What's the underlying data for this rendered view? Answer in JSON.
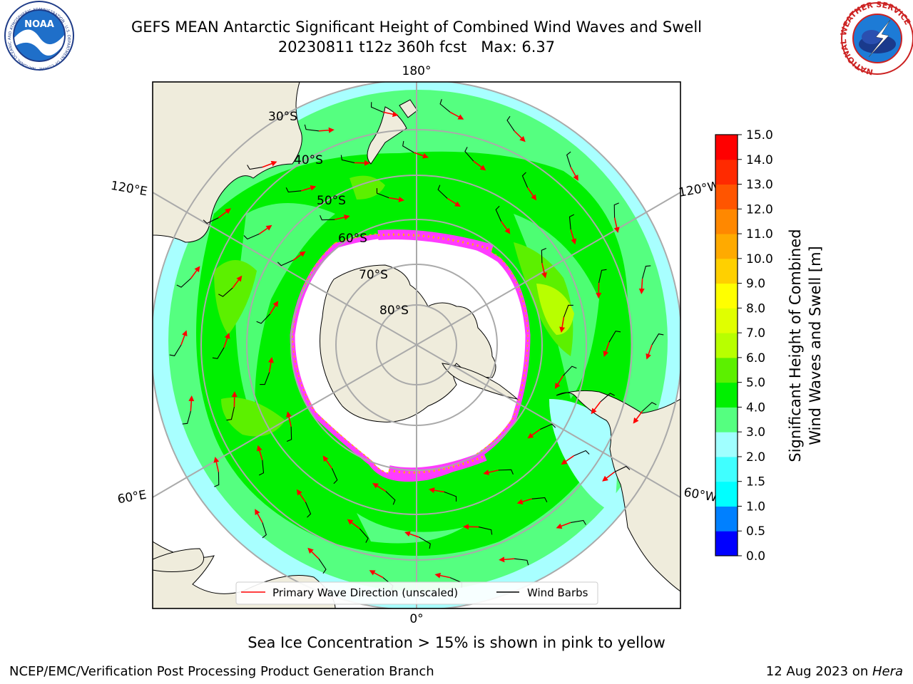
{
  "header": {
    "title_line1": "GEFS MEAN Antarctic Significant Height of Combined Wind Waves and Swell",
    "title_line2": "20230811 t12z 360h fcst   Max: 6.37"
  },
  "logos": {
    "noaa": {
      "text": "NOAA",
      "ring": "NATIONAL OCEANIC AND ATMOSPHERIC ADMINISTRATION · U.S. DEPARTMENT OF COMMERCE"
    },
    "nws": {
      "ring": "NATIONAL WEATHER SERVICE"
    }
  },
  "map": {
    "lon_labels": {
      "top": "180°",
      "bottom": "0°",
      "upper_left": "120°E",
      "upper_right": "120°W",
      "lower_left": "60°E",
      "lower_right": "60°W"
    },
    "lat_labels": [
      "30°S",
      "40°S",
      "50°S",
      "60°S",
      "70°S",
      "80°S"
    ],
    "legend": {
      "wave_direction": "Primary Wave Direction (unscaled)",
      "wind_barbs": "Wind Barbs"
    },
    "colors": {
      "land": "#efecdc",
      "sea_ice": "#ff3cff",
      "arrow": "#ff0000",
      "barb": "#000000"
    }
  },
  "colorbar": {
    "label_line1": "Significant Height of Combined",
    "label_line2": "Wind Waves and Swell [m]",
    "ticks": [
      "0.0",
      "0.5",
      "1.0",
      "1.5",
      "2.0",
      "3.0",
      "4.0",
      "5.0",
      "6.0",
      "7.0",
      "8.0",
      "9.0",
      "10.0",
      "11.0",
      "12.0",
      "13.0",
      "14.0",
      "15.0"
    ],
    "colors": [
      "#0000ff",
      "#0080ff",
      "#00ffff",
      "#40ffff",
      "#a0ffff",
      "#55ff80",
      "#00f000",
      "#5cf000",
      "#b8ff00",
      "#e0ff00",
      "#ffff00",
      "#ffd000",
      "#ffaa00",
      "#ff8800",
      "#ff5500",
      "#ff2a00",
      "#ff0000"
    ]
  },
  "caption": "Sea Ice Concentration > 15% is shown in pink to yellow",
  "footer": {
    "left": "NCEP/EMC/Verification Post Processing Product Generation Branch",
    "right_date": "12 Aug 2023 on ",
    "right_host": "Hera"
  }
}
